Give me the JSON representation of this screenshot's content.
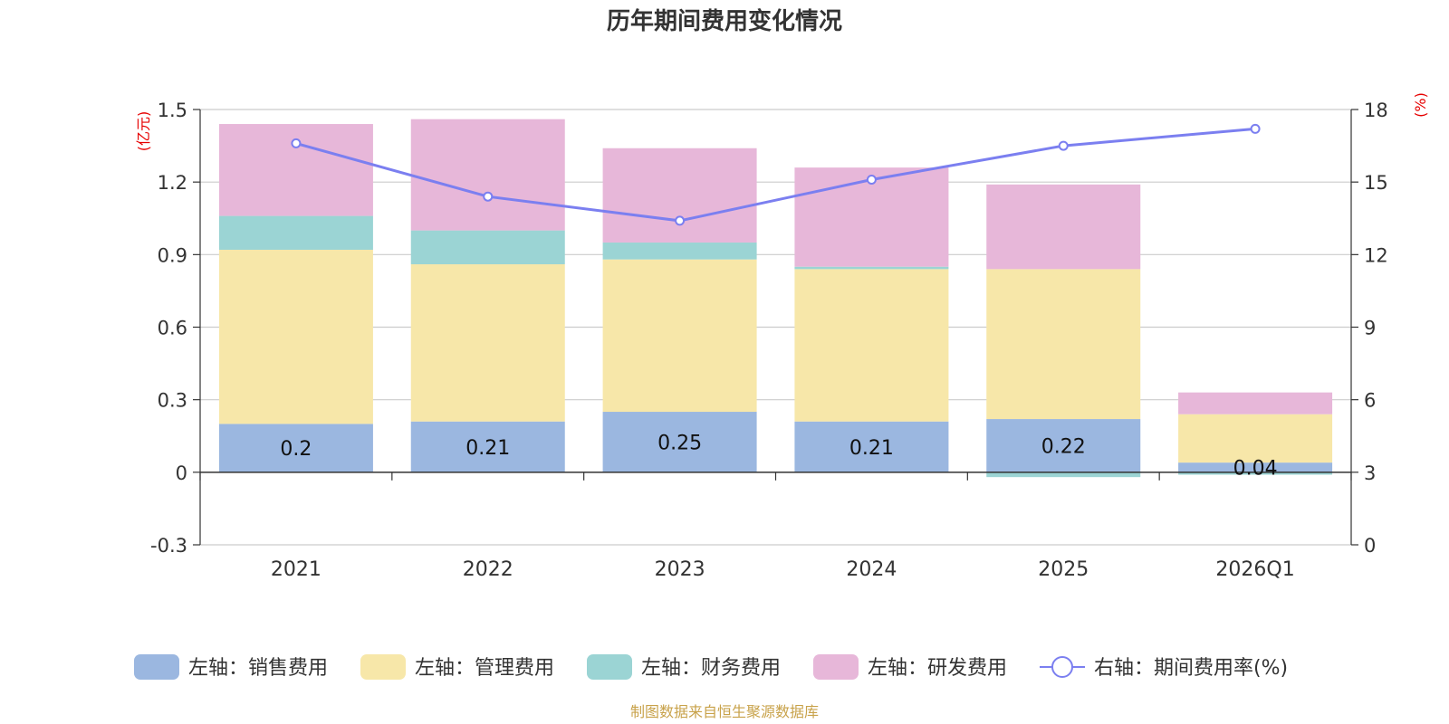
{
  "chart_data": {
    "type": "bar",
    "title": "历年期间费用变化情况",
    "categories": [
      "2021",
      "2022",
      "2023",
      "2024",
      "2025",
      "2026Q1"
    ],
    "left_axis": {
      "unit_label": "(亿元)",
      "min": -0.3,
      "max": 1.5,
      "ticks": [
        "-0.3",
        "0",
        "0.3",
        "0.6",
        "0.9",
        "1.2",
        "1.5"
      ]
    },
    "right_axis": {
      "unit_label": "(%)",
      "min": 0,
      "max": 18,
      "ticks": [
        "0",
        "3",
        "6",
        "9",
        "12",
        "15",
        "18"
      ]
    },
    "series": [
      {
        "name": "左轴：销售费用",
        "type": "bar",
        "color": "#9bb7e0",
        "values": [
          0.2,
          0.21,
          0.25,
          0.21,
          0.22,
          0.04
        ],
        "labels": [
          "0.2",
          "0.21",
          "0.25",
          "0.21",
          "0.22",
          "0.04"
        ]
      },
      {
        "name": "左轴：管理费用",
        "type": "bar",
        "color": "#f7e7a9",
        "values": [
          0.72,
          0.65,
          0.63,
          0.63,
          0.62,
          0.2
        ]
      },
      {
        "name": "左轴：财务费用",
        "type": "bar",
        "color": "#9bd4d4",
        "values": [
          0.14,
          0.14,
          0.07,
          0.01,
          -0.02,
          -0.01
        ]
      },
      {
        "name": "左轴：研发费用",
        "type": "bar",
        "color": "#e7b7d9",
        "values": [
          0.38,
          0.46,
          0.39,
          0.41,
          0.35,
          0.09
        ]
      },
      {
        "name": "右轴：期间费用率(%)",
        "type": "line",
        "color": "#7b7ff0",
        "values": [
          16.6,
          14.4,
          13.4,
          15.1,
          16.5,
          17.2
        ]
      }
    ]
  },
  "footer": "制图数据来自恒生聚源数据库"
}
